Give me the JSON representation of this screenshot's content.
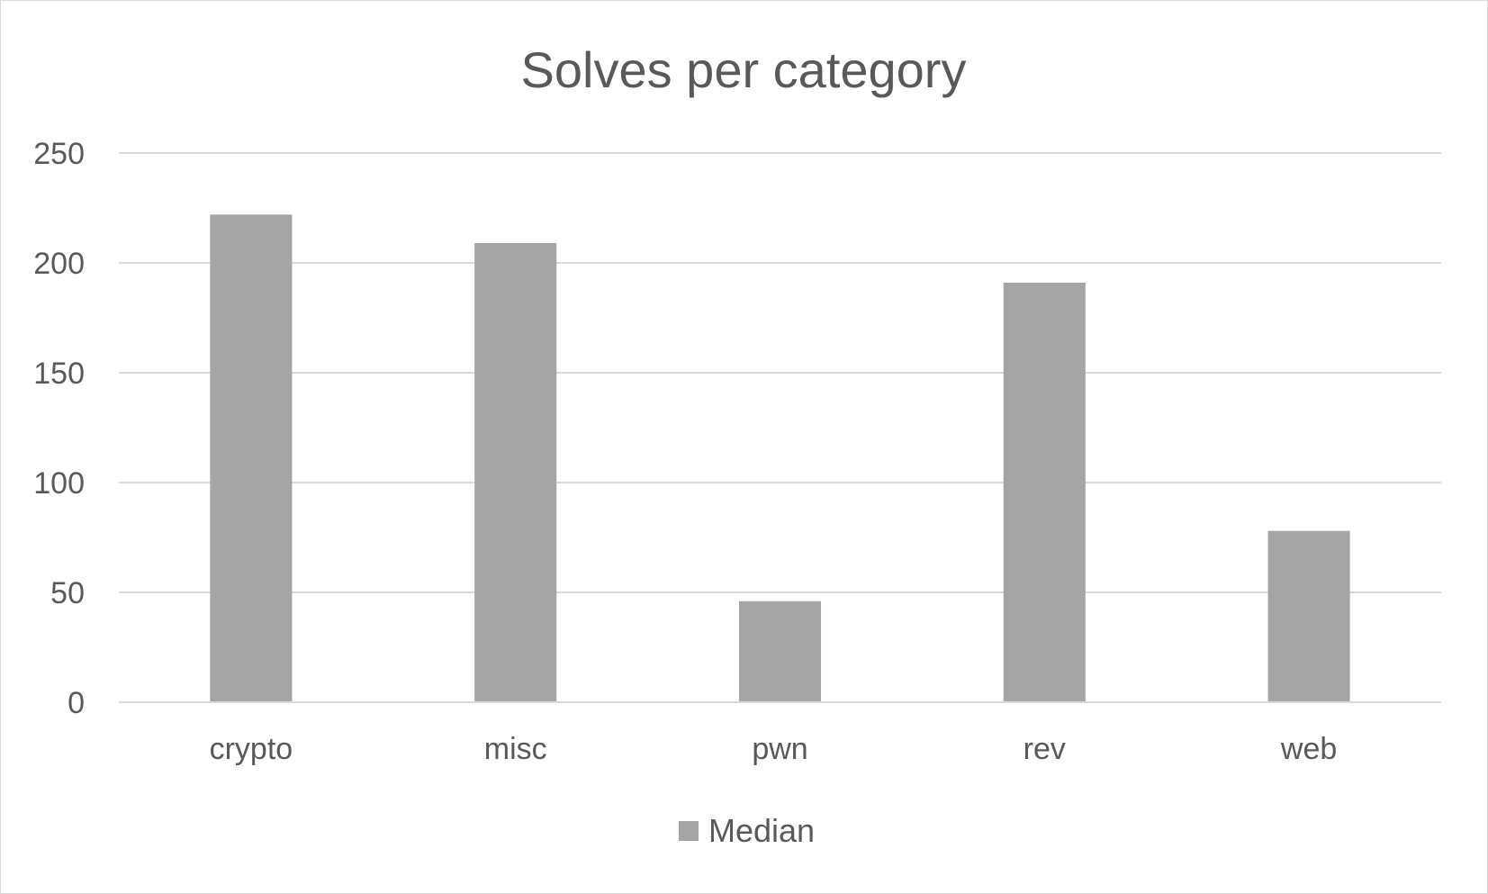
{
  "chart_data": {
    "type": "bar",
    "title": "Solves per category",
    "xlabel": "",
    "ylabel": "",
    "categories": [
      "crypto",
      "misc",
      "pwn",
      "rev",
      "web"
    ],
    "series": [
      {
        "name": "Median",
        "values": [
          222,
          209,
          46,
          191,
          78
        ],
        "color": "#a5a5a5"
      }
    ],
    "ylim": [
      0,
      250
    ],
    "yticks": [
      0,
      50,
      100,
      150,
      200,
      250
    ],
    "ytick_labels": [
      "0",
      "50",
      "100",
      "150",
      "200",
      "250"
    ],
    "grid": true,
    "legend_position": "bottom",
    "colors": {
      "gridline": "#d9d9d9",
      "axis": "#d9d9d9",
      "text": "#595959"
    }
  }
}
